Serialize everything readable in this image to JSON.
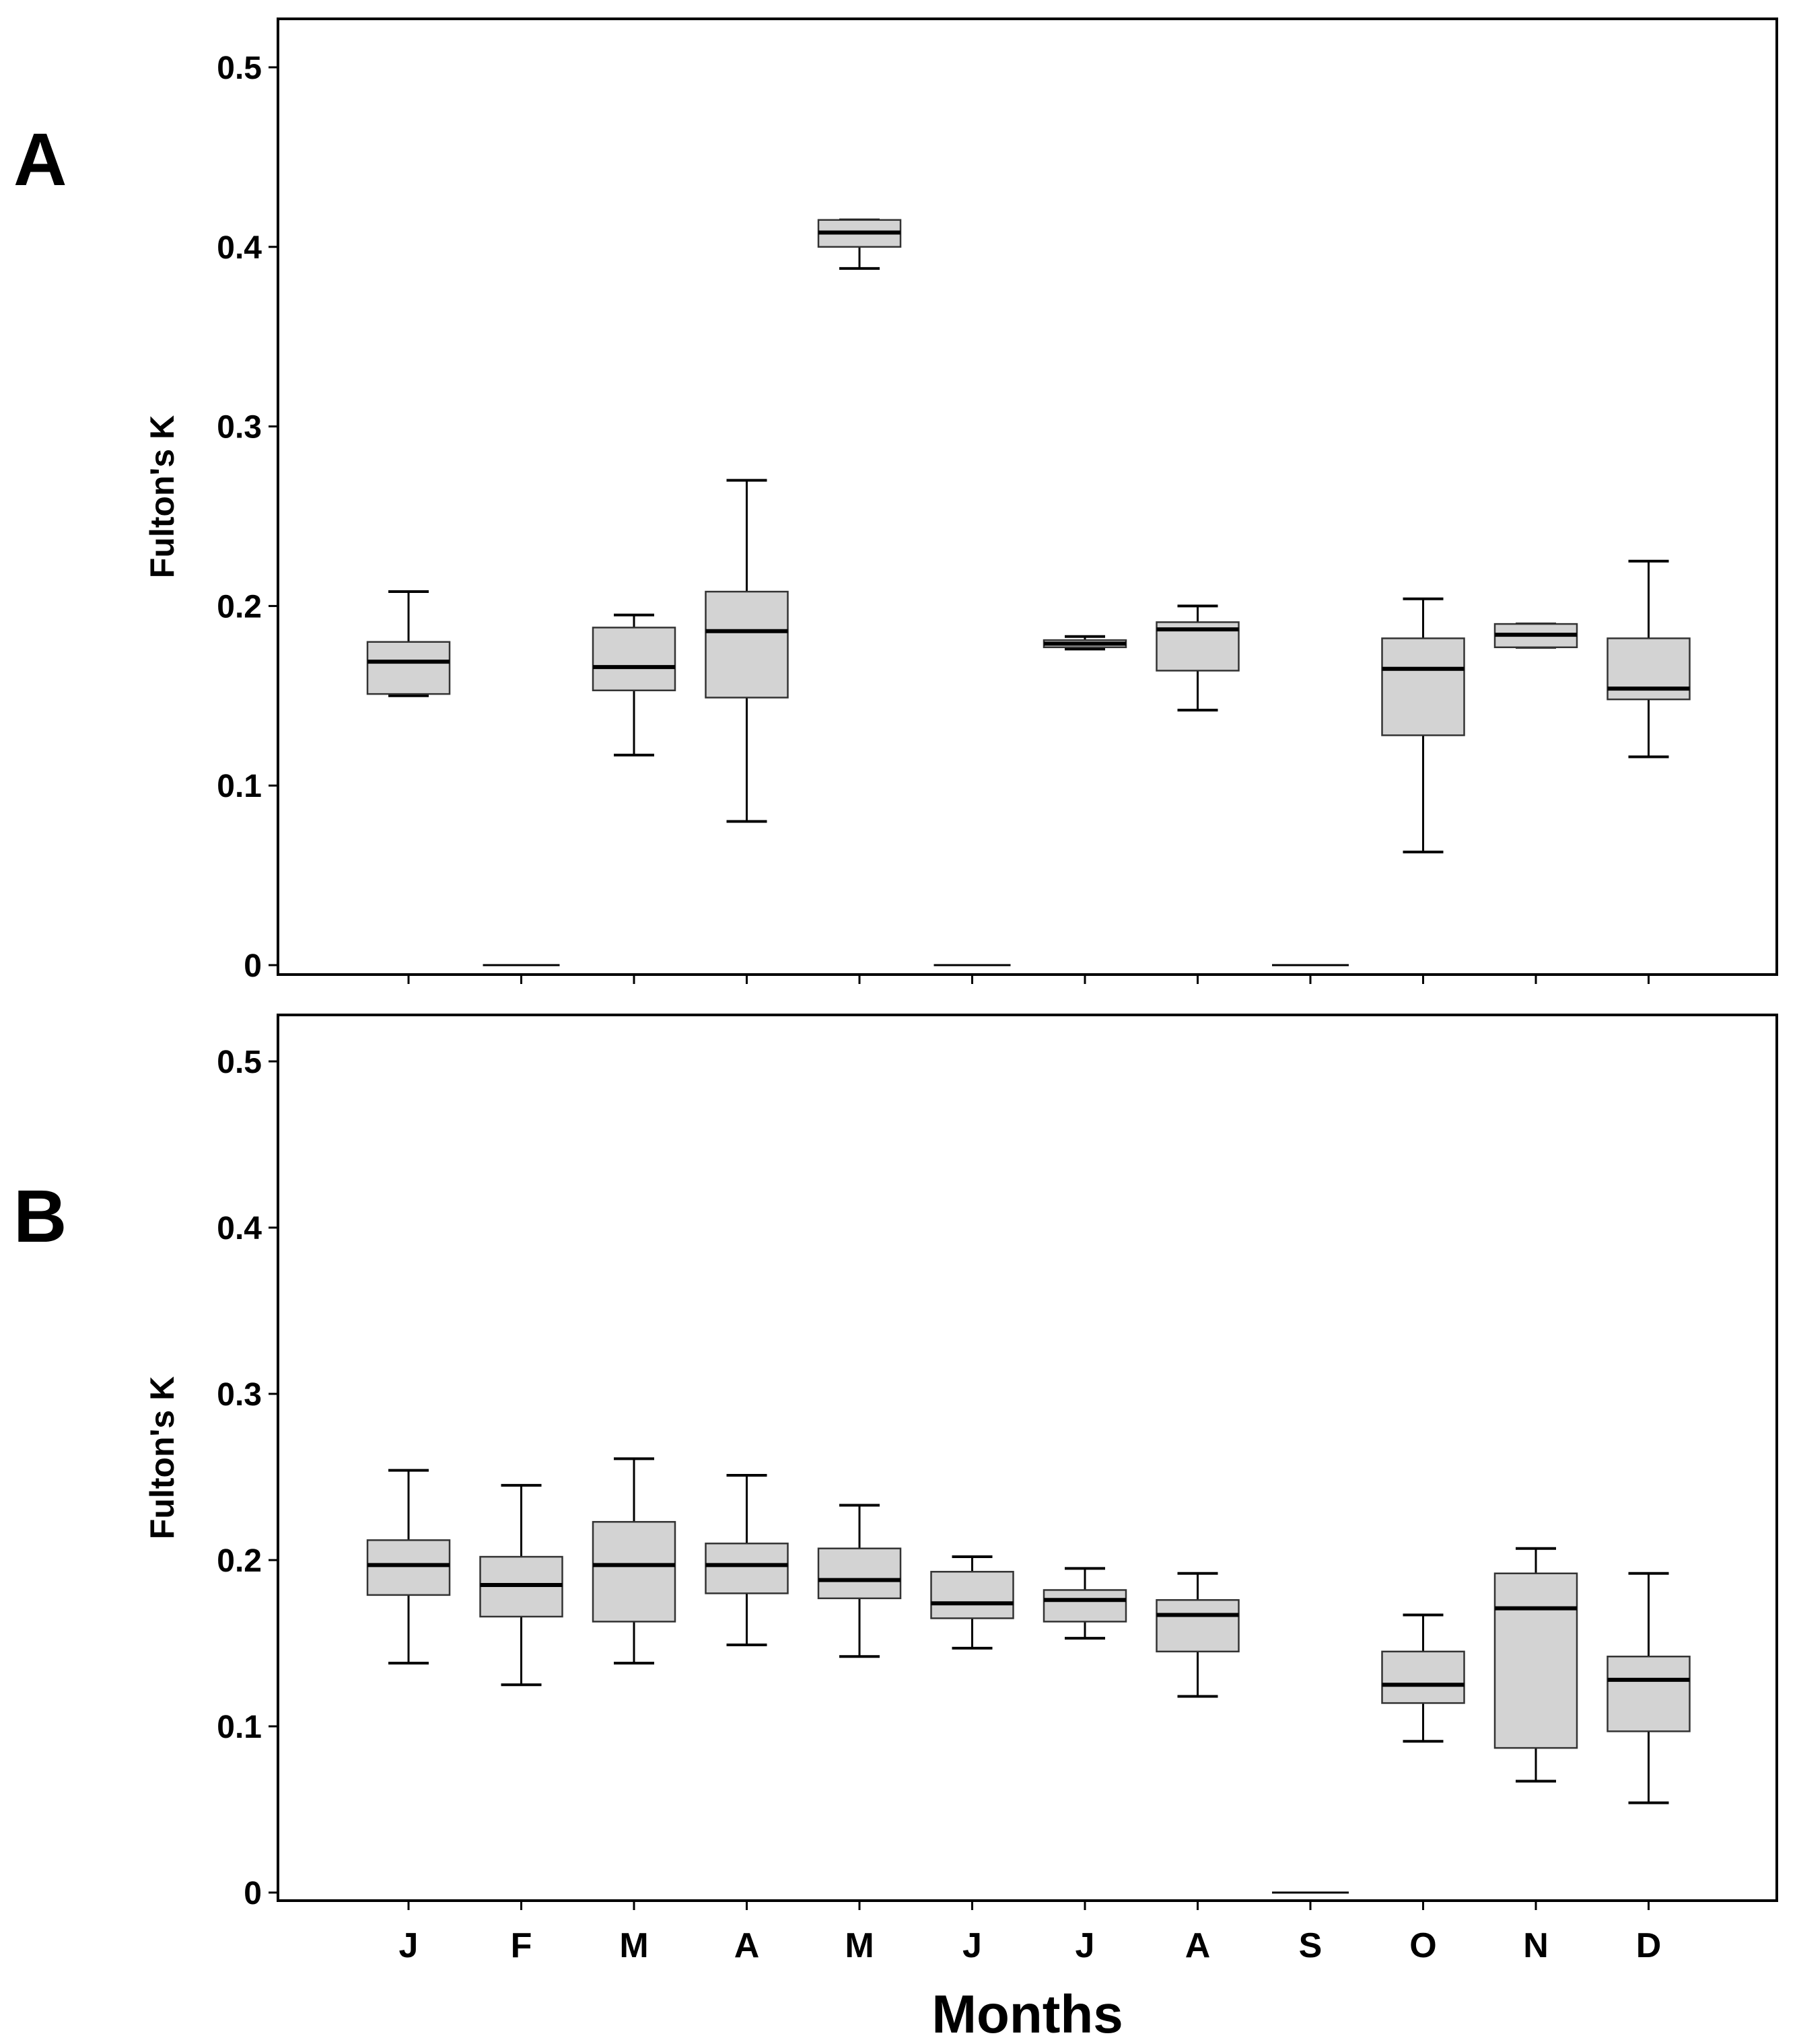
{
  "chart_data": [
    {
      "type": "box",
      "panel_label": "A",
      "ylabel": "Fulton's K",
      "xlabel": "",
      "ylim": [
        0,
        0.5
      ],
      "yticks": [
        "0",
        "0.1",
        "0.2",
        "0.3",
        "0.4",
        "0.5"
      ],
      "categories": [
        "J",
        "F",
        "M",
        "A",
        "M",
        "J",
        "J",
        "A",
        "S",
        "O",
        "N",
        "D"
      ],
      "boxes": [
        {
          "month": "J",
          "min": 0.15,
          "q1": 0.151,
          "median": 0.169,
          "q3": 0.18,
          "max": 0.208
        },
        {
          "month": "F",
          "empty": true
        },
        {
          "month": "M",
          "min": 0.117,
          "q1": 0.153,
          "median": 0.166,
          "q3": 0.188,
          "max": 0.195
        },
        {
          "month": "A",
          "min": 0.08,
          "q1": 0.149,
          "median": 0.186,
          "q3": 0.208,
          "max": 0.27
        },
        {
          "month": "M",
          "min": 0.388,
          "q1": 0.4,
          "median": 0.408,
          "q3": 0.415,
          "max": 0.415
        },
        {
          "month": "J",
          "empty": true
        },
        {
          "month": "J",
          "min": 0.176,
          "q1": 0.177,
          "median": 0.179,
          "q3": 0.181,
          "max": 0.183
        },
        {
          "month": "A",
          "min": 0.142,
          "q1": 0.164,
          "median": 0.187,
          "q3": 0.191,
          "max": 0.2
        },
        {
          "month": "S",
          "empty": true
        },
        {
          "month": "O",
          "min": 0.063,
          "q1": 0.128,
          "median": 0.165,
          "q3": 0.182,
          "max": 0.204
        },
        {
          "month": "N",
          "min": 0.177,
          "q1": 0.177,
          "median": 0.184,
          "q3": 0.19,
          "max": 0.19
        },
        {
          "month": "D",
          "min": 0.116,
          "q1": 0.148,
          "median": 0.154,
          "q3": 0.182,
          "max": 0.225
        }
      ]
    },
    {
      "type": "box",
      "panel_label": "B",
      "ylabel": "Fulton's K",
      "xlabel": "Months",
      "ylim": [
        0,
        0.5
      ],
      "yticks": [
        "0",
        "0.1",
        "0.2",
        "0.3",
        "0.4",
        "0.5"
      ],
      "categories": [
        "J",
        "F",
        "M",
        "A",
        "M",
        "J",
        "J",
        "A",
        "S",
        "O",
        "N",
        "D"
      ],
      "boxes": [
        {
          "month": "J",
          "min": 0.138,
          "q1": 0.179,
          "median": 0.197,
          "q3": 0.212,
          "max": 0.254
        },
        {
          "month": "F",
          "min": 0.125,
          "q1": 0.166,
          "median": 0.185,
          "q3": 0.202,
          "max": 0.245
        },
        {
          "month": "M",
          "min": 0.138,
          "q1": 0.163,
          "median": 0.197,
          "q3": 0.223,
          "max": 0.261
        },
        {
          "month": "A",
          "min": 0.149,
          "q1": 0.18,
          "median": 0.197,
          "q3": 0.21,
          "max": 0.251
        },
        {
          "month": "M",
          "min": 0.142,
          "q1": 0.177,
          "median": 0.188,
          "q3": 0.207,
          "max": 0.233
        },
        {
          "month": "J",
          "min": 0.147,
          "q1": 0.165,
          "median": 0.174,
          "q3": 0.193,
          "max": 0.202
        },
        {
          "month": "J",
          "min": 0.153,
          "q1": 0.163,
          "median": 0.176,
          "q3": 0.182,
          "max": 0.195
        },
        {
          "month": "A",
          "min": 0.118,
          "q1": 0.145,
          "median": 0.167,
          "q3": 0.176,
          "max": 0.192
        },
        {
          "month": "S",
          "empty": true
        },
        {
          "month": "O",
          "min": 0.091,
          "q1": 0.114,
          "median": 0.125,
          "q3": 0.145,
          "max": 0.167
        },
        {
          "month": "N",
          "min": 0.067,
          "q1": 0.087,
          "median": 0.171,
          "q3": 0.192,
          "max": 0.207
        },
        {
          "month": "D",
          "min": 0.054,
          "q1": 0.097,
          "median": 0.128,
          "q3": 0.142,
          "max": 0.192
        }
      ]
    }
  ]
}
